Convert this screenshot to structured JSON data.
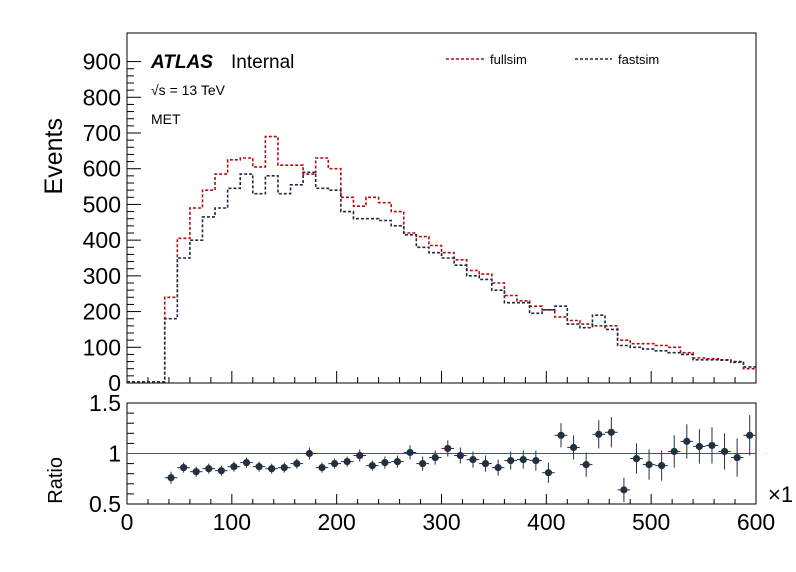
{
  "chart_data": [
    {
      "type": "line",
      "drawstyle": "steps-mid",
      "ylabel": "Events",
      "xlim": [
        0,
        600
      ],
      "ylim": [
        0,
        980
      ],
      "yticks": [
        "0",
        "100",
        "200",
        "300",
        "400",
        "500",
        "600",
        "700",
        "800",
        "900"
      ],
      "legend": {
        "position": "top-right"
      },
      "annotations": {
        "brand": "ATLAS",
        "status": "Internal",
        "energy": "√s = 13 TeV",
        "variable": "MET"
      },
      "bin_edges": [
        0,
        12,
        24,
        36,
        48,
        60,
        72,
        84,
        96,
        108,
        120,
        132,
        144,
        156,
        168,
        180,
        192,
        204,
        216,
        228,
        240,
        252,
        264,
        276,
        288,
        300,
        312,
        324,
        336,
        348,
        360,
        372,
        384,
        396,
        408,
        420,
        432,
        444,
        456,
        468,
        480,
        492,
        504,
        516,
        528,
        540,
        552,
        564,
        576,
        588,
        600
      ],
      "series": [
        {
          "name": "fullsim",
          "color": "#b01010",
          "dash": "3,2",
          "values": [
            3,
            3,
            3,
            240,
            405,
            490,
            540,
            585,
            625,
            630,
            605,
            690,
            610,
            610,
            585,
            630,
            600,
            520,
            495,
            520,
            505,
            480,
            420,
            410,
            385,
            365,
            345,
            315,
            305,
            280,
            245,
            230,
            215,
            205,
            185,
            175,
            165,
            160,
            160,
            120,
            110,
            110,
            105,
            100,
            85,
            70,
            68,
            64,
            58,
            40
          ]
        },
        {
          "name": "fastsim",
          "color": "#1c2c44",
          "dash": "3,2",
          "values": [
            3,
            3,
            3,
            180,
            350,
            400,
            465,
            490,
            545,
            585,
            530,
            580,
            530,
            555,
            590,
            545,
            540,
            480,
            460,
            460,
            455,
            440,
            415,
            380,
            365,
            350,
            330,
            300,
            290,
            260,
            225,
            225,
            195,
            205,
            215,
            165,
            155,
            190,
            150,
            105,
            100,
            95,
            90,
            85,
            80,
            65,
            65,
            65,
            60,
            45
          ]
        }
      ]
    },
    {
      "type": "scatter",
      "ylabel": "Ratio",
      "xlim": [
        0,
        600
      ],
      "ylim": [
        0.5,
        1.5
      ],
      "yticks": [
        "0.5",
        "1",
        "1.5"
      ],
      "xticks": [
        "0",
        "100",
        "200",
        "300",
        "400",
        "500",
        "600"
      ],
      "x_multiplier_label": "×1",
      "reference_line": {
        "y": 1,
        "color": "#cc2200"
      },
      "x": [
        42,
        54,
        66,
        78,
        90,
        102,
        114,
        126,
        138,
        150,
        162,
        174,
        186,
        198,
        210,
        222,
        234,
        246,
        258,
        270,
        282,
        294,
        306,
        318,
        330,
        342,
        354,
        366,
        378,
        390,
        402,
        414,
        426,
        438,
        450,
        462,
        474,
        486,
        498,
        510,
        522,
        534,
        546,
        558,
        570,
        582,
        594
      ],
      "values": [
        0.76,
        0.86,
        0.82,
        0.85,
        0.83,
        0.87,
        0.91,
        0.87,
        0.85,
        0.86,
        0.9,
        1.0,
        0.86,
        0.9,
        0.92,
        0.98,
        0.88,
        0.91,
        0.92,
        1.01,
        0.9,
        0.96,
        1.05,
        0.98,
        0.94,
        0.9,
        0.86,
        0.93,
        0.94,
        0.93,
        0.81,
        1.18,
        1.06,
        0.89,
        1.19,
        1.21,
        0.64,
        0.95,
        0.89,
        0.88,
        1.02,
        1.12,
        1.07,
        1.08,
        1.02,
        0.96,
        1.18
      ],
      "errors": [
        0.06,
        0.05,
        0.05,
        0.05,
        0.05,
        0.05,
        0.05,
        0.05,
        0.05,
        0.05,
        0.05,
        0.06,
        0.05,
        0.05,
        0.05,
        0.06,
        0.05,
        0.06,
        0.06,
        0.07,
        0.07,
        0.07,
        0.08,
        0.08,
        0.08,
        0.08,
        0.08,
        0.09,
        0.09,
        0.1,
        0.1,
        0.12,
        0.12,
        0.12,
        0.14,
        0.15,
        0.12,
        0.15,
        0.15,
        0.15,
        0.16,
        0.17,
        0.17,
        0.18,
        0.18,
        0.19,
        0.2
      ],
      "point_color": "#233040"
    }
  ]
}
